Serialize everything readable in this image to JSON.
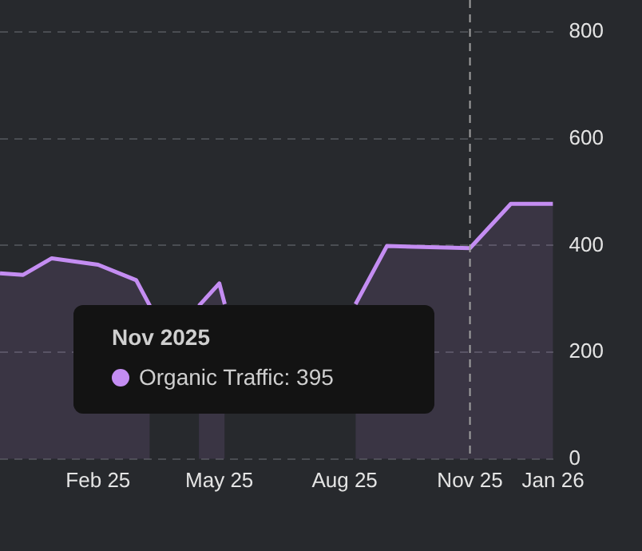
{
  "chart_data": {
    "type": "area",
    "x": [
      "2024-11-21",
      "2024-12-08",
      "2024-12-29",
      "2025-02-01",
      "2025-03-01",
      "2025-03-11",
      "2025-03-25",
      "2025-04-16",
      "2025-05-01",
      "2025-05-05",
      "2025-06-15",
      "2025-08-09",
      "2025-09-01",
      "2025-11-01",
      "2025-12-01",
      "2026-01-01"
    ],
    "series": [
      {
        "color": "#c48df2",
        "values": [
          348,
          345,
          376,
          364,
          335,
          287,
          null,
          287,
          329,
          290,
          null,
          290,
          399,
          395,
          478,
          478
        ]
      }
    ],
    "xlim": [
      "2024-11-21",
      "2026-01-01"
    ],
    "xticks": [
      {
        "value": "2025-02-01",
        "label": "Feb 25"
      },
      {
        "value": "2025-05-01",
        "label": "May 25"
      },
      {
        "value": "2025-08-01",
        "label": "Aug 25"
      },
      {
        "value": "2025-11-01",
        "label": "Nov 25"
      },
      {
        "value": "2026-01-01",
        "label": "Jan 26"
      }
    ],
    "ylim": [
      0,
      800
    ],
    "yticks": [
      0,
      200,
      400,
      600,
      800
    ],
    "grid": "y",
    "marker": "none",
    "line_style": "solid",
    "legend": false,
    "ref_lines": [
      {
        "axis": "x",
        "value": "2025-11-01",
        "color": "#a0a0a0",
        "line_style": "dashed"
      }
    ],
    "annotations": [
      "Nov 2025",
      "Organic Traffic: 395"
    ]
  }
}
